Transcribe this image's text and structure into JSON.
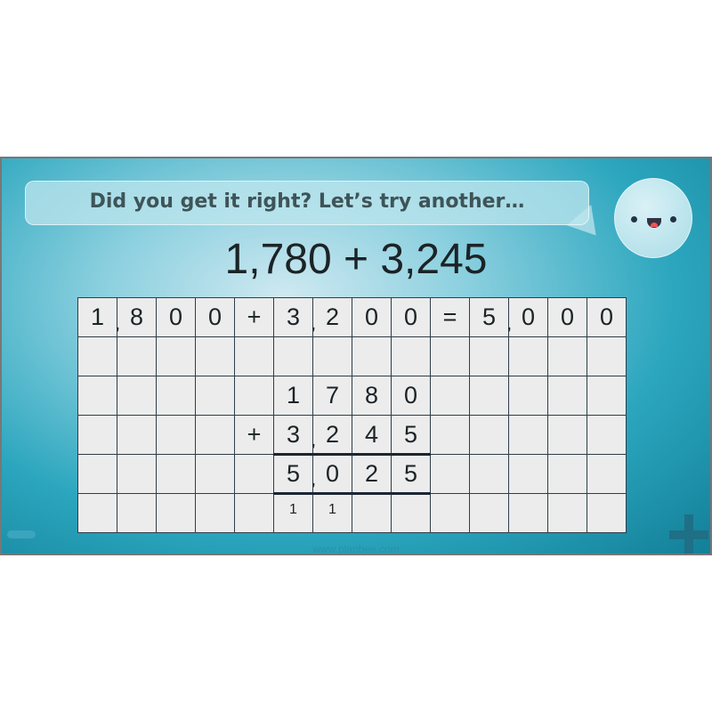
{
  "speech_bubble": {
    "text": "Did you get it right? Let’s try another…"
  },
  "expression": "1,780 + 3,245",
  "grid": {
    "rows": [
      {
        "cells": [
          "1",
          "8",
          "0",
          "0",
          "+",
          "3",
          "2",
          "0",
          "0",
          "=",
          "5",
          "0",
          "0",
          "0"
        ],
        "commas_after": [
          0,
          5,
          10
        ]
      },
      {
        "cells": [
          "",
          "",
          "",
          "",
          "",
          "",
          "",
          "",
          "",
          "",
          "",
          "",
          "",
          ""
        ],
        "commas_after": []
      },
      {
        "cells": [
          "",
          "",
          "",
          "",
          "",
          "1",
          "7",
          "8",
          "0",
          "",
          "",
          "",
          "",
          ""
        ],
        "commas_after": []
      },
      {
        "cells": [
          "",
          "",
          "",
          "",
          "+",
          "3",
          "2",
          "4",
          "5",
          "",
          "",
          "",
          "",
          ""
        ],
        "commas_after": [
          5
        ]
      },
      {
        "cells": [
          "",
          "",
          "",
          "",
          "",
          "5",
          "0",
          "2",
          "5",
          "",
          "",
          "",
          "",
          ""
        ],
        "commas_after": [
          5
        ]
      },
      {
        "cells": [
          "",
          "",
          "",
          "",
          "",
          "1",
          "1",
          "",
          "",
          "",
          "",
          "",
          "",
          ""
        ],
        "commas_after": []
      }
    ],
    "comma": ","
  },
  "footer": {
    "url": "www.planbee.com"
  },
  "nav": {
    "minus_icon": "minus-icon",
    "plus_icon": "plus-icon"
  }
}
